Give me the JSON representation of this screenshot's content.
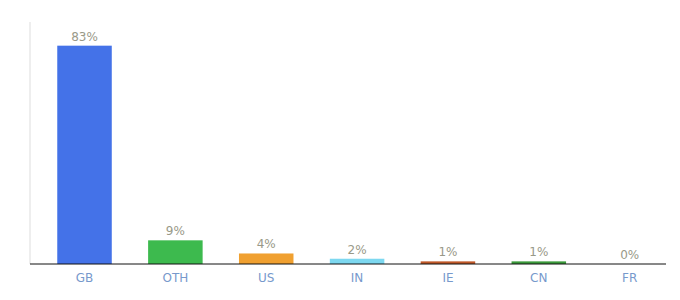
{
  "chart_data": {
    "type": "bar",
    "categories": [
      "GB",
      "OTH",
      "US",
      "IN",
      "IE",
      "CN",
      "FR"
    ],
    "values": [
      83,
      9,
      4,
      2,
      1,
      1,
      0
    ],
    "value_labels": [
      "83%",
      "9%",
      "4%",
      "2%",
      "1%",
      "1%",
      "0%"
    ],
    "colors": [
      "#4472e8",
      "#3dba4e",
      "#f0a030",
      "#7dd8f0",
      "#c05828",
      "#3a9a3a",
      "#cccccc"
    ],
    "ylim": [
      0,
      92
    ],
    "grid": false,
    "data_labels": true,
    "tick_labels": "x"
  }
}
